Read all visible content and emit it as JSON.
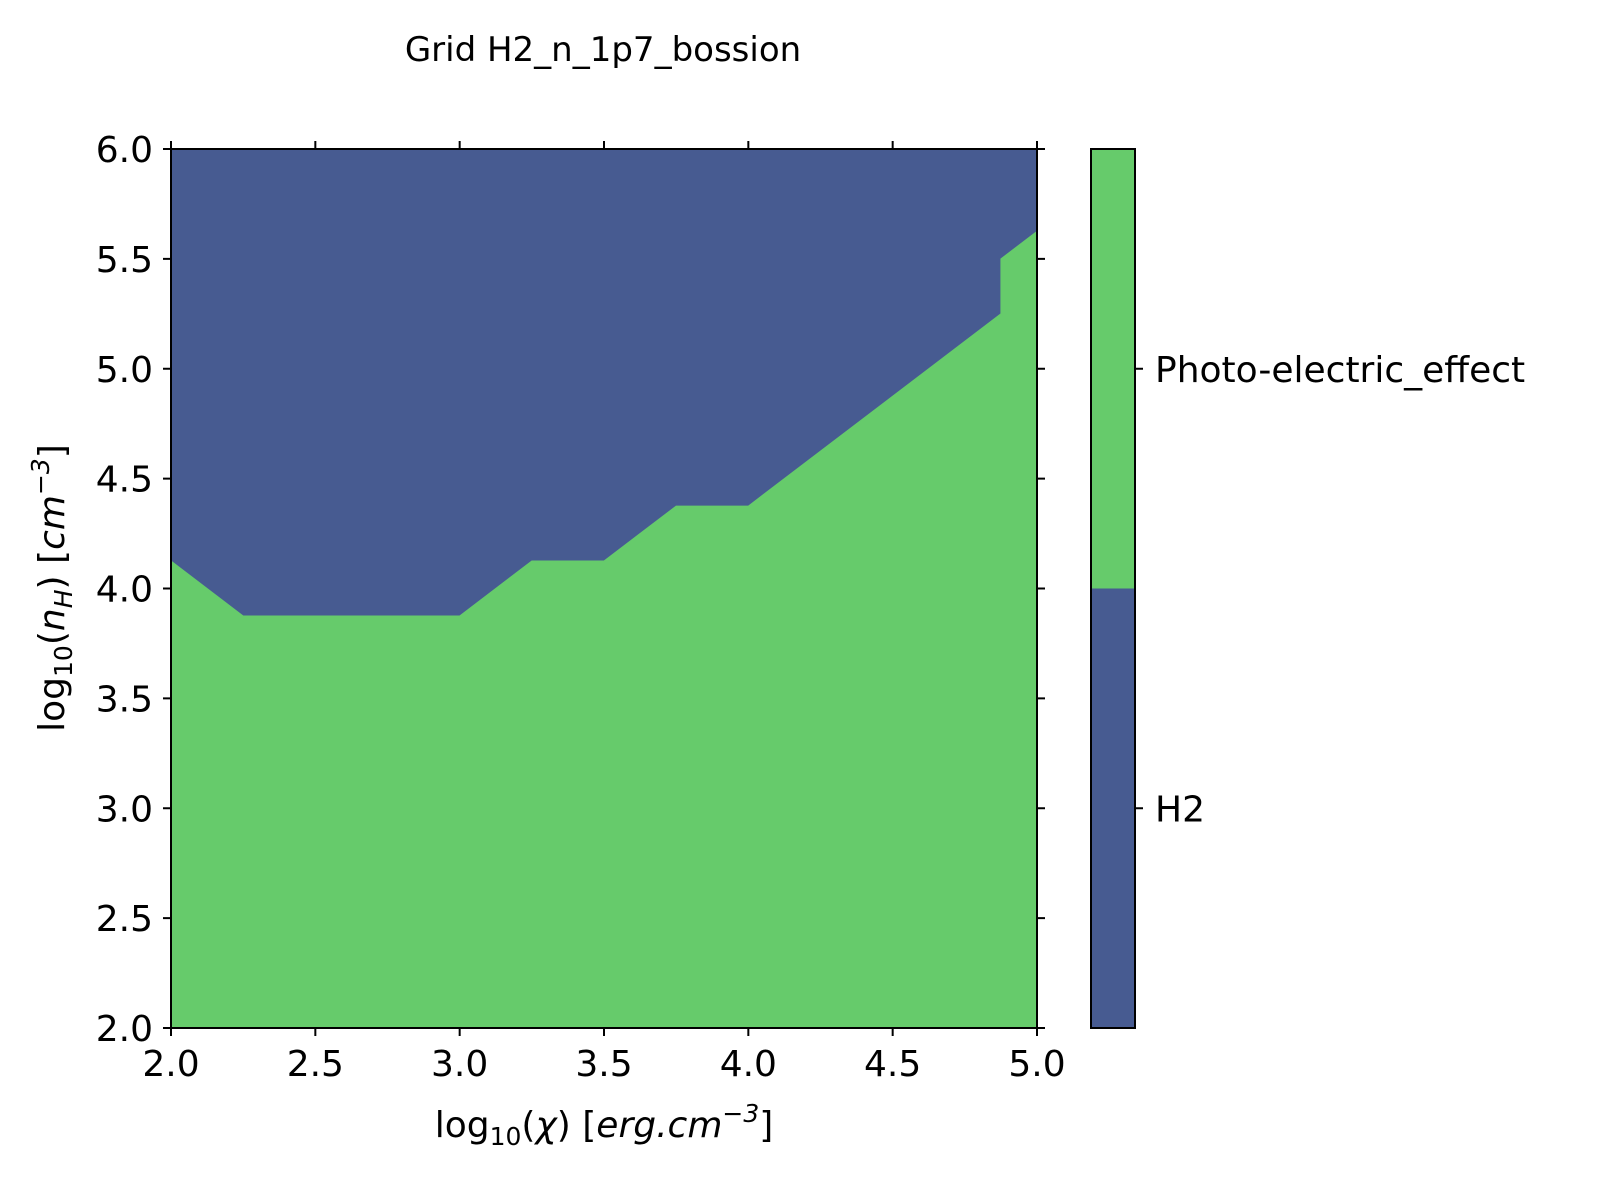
{
  "chart_data": {
    "type": "area",
    "title": "Grid H2_n_1p7_bossion",
    "xlabel": "log10(χ) [erg.cm−3]",
    "ylabel": "log10(nH) [cm−3]",
    "xlim": [
      2.0,
      5.0
    ],
    "ylim": [
      2.0,
      6.0
    ],
    "x_ticks": [
      "2.0",
      "2.5",
      "3.0",
      "3.5",
      "4.0",
      "4.5",
      "5.0"
    ],
    "y_ticks": [
      "2.0",
      "2.5",
      "3.0",
      "3.5",
      "4.0",
      "4.5",
      "5.0",
      "5.5",
      "6.0"
    ],
    "grid": false,
    "regions": [
      {
        "name": "H2",
        "color": "#475b91"
      },
      {
        "name": "Photo-electric_effect",
        "color": "#66cb6b"
      }
    ],
    "boundary": {
      "description": "H2 above boundary, Photo-electric_effect below",
      "x": [
        2.0,
        2.25,
        3.0,
        3.25,
        3.5,
        3.75,
        4.0,
        4.875,
        4.875,
        5.0
      ],
      "y": [
        4.125,
        3.875,
        3.875,
        4.125,
        4.125,
        4.375,
        4.375,
        5.25,
        5.5,
        5.625
      ]
    },
    "colorbar": {
      "labels": [
        "H2",
        "Photo-electric_effect"
      ],
      "colors": [
        "#475b91",
        "#66cb6b"
      ]
    }
  }
}
